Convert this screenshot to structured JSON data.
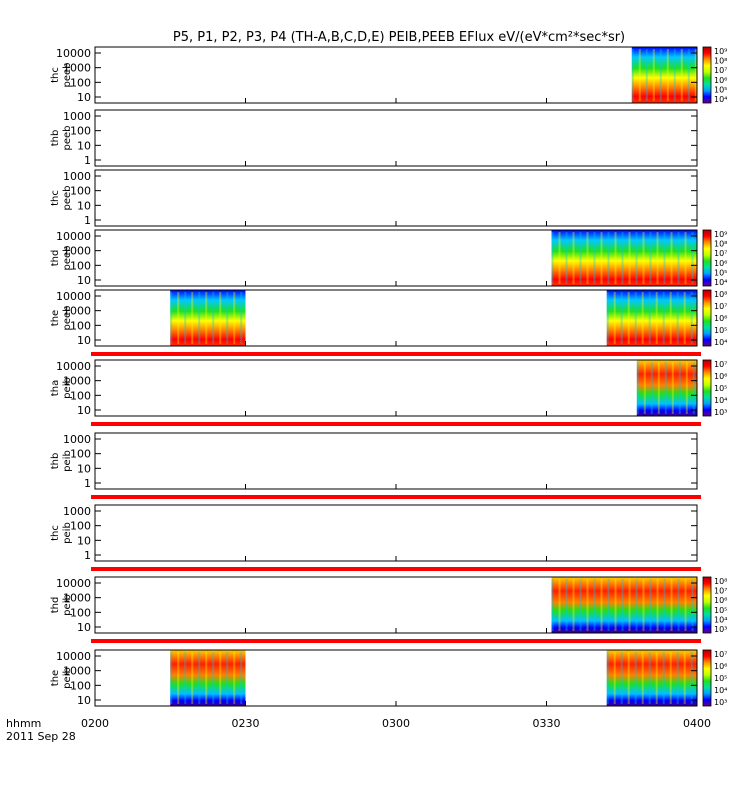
{
  "chart_data": {
    "type": "heatmap",
    "title": "P5, P1, P2, P3, P4 (TH-A,B,C,D,E) PEIB,PEEB EFlux eV/(eV*cm²*sec*sr)",
    "x_axis": {
      "range": [
        "0200",
        "0400"
      ],
      "tick_labels": [
        "0200",
        "0230",
        "0300",
        "0330",
        "0400"
      ],
      "label": "hhmm",
      "date": "2011 Sep 28"
    },
    "panels": [
      {
        "label1": "thc",
        "label2": "peeb",
        "yticks": [
          "10",
          "100",
          "1000",
          "10000"
        ],
        "has_data": true,
        "colorbar_ticks": [
          "10⁴",
          "10⁵",
          "10⁶",
          "10⁷",
          "10⁸",
          "10⁹"
        ],
        "blocks": [
          [
            "0347",
            "0400"
          ]
        ],
        "red_bar": false
      },
      {
        "label1": "thb",
        "label2": "peeb",
        "yticks": [
          "1",
          "10",
          "100",
          "1000"
        ],
        "has_data": false,
        "colorbar_ticks": [],
        "blocks": [],
        "red_bar": false
      },
      {
        "label1": "thc",
        "label2": "peeb",
        "yticks": [
          "1",
          "10",
          "100",
          "1000"
        ],
        "has_data": false,
        "colorbar_ticks": [],
        "blocks": [],
        "red_bar": false
      },
      {
        "label1": "thd",
        "label2": "peeb",
        "yticks": [
          "10",
          "100",
          "1000",
          "10000"
        ],
        "has_data": true,
        "colorbar_ticks": [
          "10⁴",
          "10⁵",
          "10⁶",
          "10⁷",
          "10⁸",
          "10⁹"
        ],
        "blocks": [
          [
            "0331",
            "0400"
          ]
        ],
        "red_bar": false
      },
      {
        "label1": "the",
        "label2": "peeb",
        "yticks": [
          "10",
          "100",
          "1000",
          "10000"
        ],
        "has_data": true,
        "colorbar_ticks": [
          "10⁴",
          "10⁵",
          "10⁶",
          "10⁷",
          "10⁸"
        ],
        "blocks": [
          [
            "0215",
            "0230"
          ],
          [
            "0342",
            "0400"
          ]
        ],
        "red_bar": true
      },
      {
        "label1": "tha",
        "label2": "peib",
        "yticks": [
          "10",
          "100",
          "1000",
          "10000"
        ],
        "has_data": true,
        "colorbar_ticks": [
          "10³",
          "10⁴",
          "10⁵",
          "10⁶",
          "10⁷"
        ],
        "blocks": [
          [
            "0348",
            "0400"
          ]
        ],
        "red_bar": true
      },
      {
        "label1": "thb",
        "label2": "peib",
        "yticks": [
          "1",
          "10",
          "100",
          "1000"
        ],
        "has_data": false,
        "colorbar_ticks": [],
        "blocks": [],
        "red_bar": true
      },
      {
        "label1": "thc",
        "label2": "peib",
        "yticks": [
          "1",
          "10",
          "100",
          "1000"
        ],
        "has_data": false,
        "colorbar_ticks": [],
        "blocks": [],
        "red_bar": true
      },
      {
        "label1": "thd",
        "label2": "peib",
        "yticks": [
          "10",
          "100",
          "1000",
          "10000"
        ],
        "has_data": true,
        "colorbar_ticks": [
          "10³",
          "10⁴",
          "10⁵",
          "10⁶",
          "10⁷",
          "10⁸"
        ],
        "blocks": [
          [
            "0331",
            "0400"
          ]
        ],
        "red_bar": true
      },
      {
        "label1": "the",
        "label2": "peib",
        "yticks": [
          "10",
          "100",
          "1000",
          "10000"
        ],
        "has_data": true,
        "colorbar_ticks": [
          "10³",
          "10⁴",
          "10⁵",
          "10⁶",
          "10⁷"
        ],
        "blocks": [
          [
            "0215",
            "0230"
          ],
          [
            "0342",
            "0400"
          ]
        ],
        "red_bar": false
      }
    ],
    "colors": {
      "marker_bar": "#ff0000",
      "axis": "#000000"
    },
    "colormap": [
      "#6a0080",
      "#0000ff",
      "#00a0ff",
      "#00e0a0",
      "#20e020",
      "#c0ff00",
      "#ffff00",
      "#ff9000",
      "#ff0000",
      "#b00000"
    ]
  }
}
